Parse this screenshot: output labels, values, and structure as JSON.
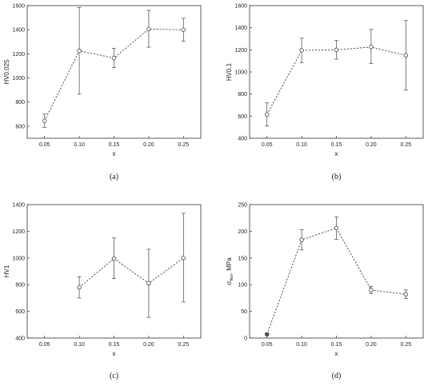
{
  "chart_data": [
    {
      "type": "line",
      "panel_label": "(a)",
      "xlabel": "x",
      "ylabel": "HV0.025",
      "xlim": [
        0.025,
        0.275
      ],
      "ylim": [
        500,
        1600
      ],
      "xticks": [
        "0.05",
        "0.10",
        "0.15",
        "0.20",
        "0.25"
      ],
      "yticks": [
        "600",
        "800",
        "1000",
        "1200",
        "1400",
        "1600"
      ],
      "x": [
        0.05,
        0.1,
        0.15,
        0.2,
        0.25
      ],
      "y": [
        645,
        1225,
        1165,
        1405,
        1400
      ],
      "err_low": [
        590,
        865,
        1085,
        1255,
        1305
      ],
      "err_high": [
        700,
        1585,
        1245,
        1560,
        1495
      ],
      "grid": false,
      "line_style": "dashed",
      "marker": "open-circle"
    },
    {
      "type": "line",
      "panel_label": "(b)",
      "xlabel": "x",
      "ylabel": "HV0.1",
      "xlim": [
        0.025,
        0.275
      ],
      "ylim": [
        400,
        1600
      ],
      "xticks": [
        "0.05",
        "0.10",
        "0.15",
        "0.20",
        "0.25"
      ],
      "yticks": [
        "400",
        "600",
        "800",
        "1000",
        "1200",
        "1400",
        "1600"
      ],
      "x": [
        0.05,
        0.1,
        0.15,
        0.2,
        0.25
      ],
      "y": [
        615,
        1195,
        1200,
        1225,
        1150
      ],
      "err_low": [
        510,
        1085,
        1115,
        1075,
        835
      ],
      "err_high": [
        720,
        1305,
        1285,
        1385,
        1465
      ],
      "grid": false,
      "line_style": "dashed",
      "marker": "open-circle"
    },
    {
      "type": "line",
      "panel_label": "(c)",
      "xlabel": "x",
      "ylabel": "HV1",
      "xlim": [
        0.025,
        0.275
      ],
      "ylim": [
        400,
        1400
      ],
      "xticks": [
        "0.05",
        "0.10",
        "0.15",
        "0.20",
        "0.25"
      ],
      "yticks": [
        "400",
        "600",
        "800",
        "1000",
        "1200",
        "1400"
      ],
      "x": [
        0.1,
        0.15,
        0.2,
        0.25
      ],
      "y": [
        780,
        995,
        810,
        1000
      ],
      "err_low": [
        700,
        845,
        555,
        670
      ],
      "err_high": [
        860,
        1150,
        1065,
        1335
      ],
      "grid": false,
      "line_style": "dashed",
      "marker": "open-circle"
    },
    {
      "type": "line",
      "panel_label": "(d)",
      "xlabel": "x",
      "ylabel": "σ",
      "ylabel_sub": "flex",
      "ylabel_unit": ", MPa",
      "xlim": [
        0.025,
        0.275
      ],
      "ylim": [
        0,
        250
      ],
      "xticks": [
        "0.05",
        "0.10",
        "0.15",
        "0.20",
        "0.25"
      ],
      "yticks": [
        "0",
        "50",
        "100",
        "150",
        "200",
        "250"
      ],
      "x": [
        0.05,
        0.1,
        0.15,
        0.2,
        0.25
      ],
      "y": [
        7,
        184,
        206,
        90,
        82
      ],
      "err_low": [
        5,
        165,
        185,
        83,
        74
      ],
      "err_high": [
        9,
        203,
        227,
        97,
        90
      ],
      "filled_points": [
        0
      ],
      "grid": false,
      "line_style": "dashed",
      "marker": "open-circle"
    }
  ]
}
